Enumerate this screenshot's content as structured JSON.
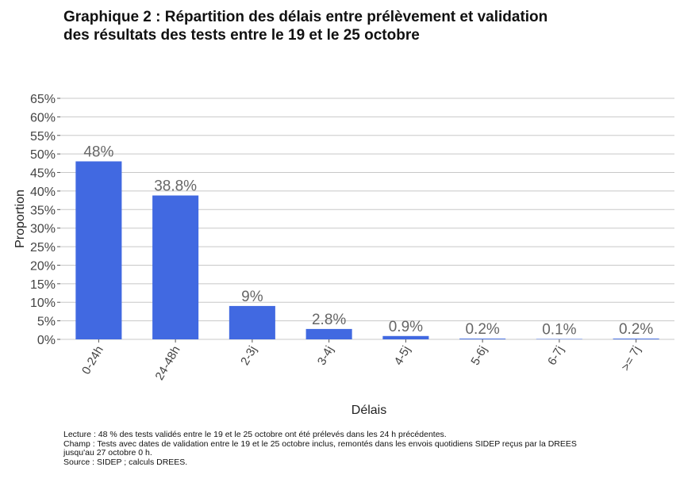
{
  "title_lines": [
    "Graphique 2 : Répartition des délais entre prélèvement et validation",
    "des résultats des tests entre le 19 et le 25 octobre"
  ],
  "chart_data": {
    "type": "bar",
    "title": "Graphique 2 : Répartition des délais entre prélèvement et validation des résultats des tests entre le 19 et le 25 octobre",
    "xlabel": "Délais",
    "ylabel": "Proportion",
    "categories": [
      "0-24h",
      "24-48h",
      "2-3j",
      "3-4j",
      "4-5j",
      "5-6j",
      "6-7j",
      ">= 7j"
    ],
    "values": [
      48,
      38.8,
      9,
      2.8,
      0.9,
      0.2,
      0.1,
      0.2
    ],
    "value_labels": [
      "48%",
      "38.8%",
      "9%",
      "2.8%",
      "0.9%",
      "0.2%",
      "0.1%",
      "0.2%"
    ],
    "ylim": [
      0,
      65
    ],
    "yticks": [
      0,
      5,
      10,
      15,
      20,
      25,
      30,
      35,
      40,
      45,
      50,
      55,
      60,
      65
    ],
    "ytick_labels": [
      "0%",
      "5%",
      "10%",
      "15%",
      "20%",
      "25%",
      "30%",
      "35%",
      "40%",
      "45%",
      "50%",
      "55%",
      "60%",
      "65%"
    ],
    "grid": true,
    "legend": "none",
    "colors": {
      "bar": "#4169e1",
      "grid": "#c8c8c8",
      "value_label": "#666666",
      "tick_label": "#444444"
    }
  },
  "footnotes": [
    "Lecture : 48 % des tests validés entre le 19 et le 25 octobre ont été prélevés dans les 24 h précédentes.",
    "Champ : Tests avec dates de validation entre le 19 et le 25 octobre inclus, remontés dans les envois quotidiens SIDEP reçus par la DREES",
    "jusqu'au 27 octobre 0 h.",
    "Source : SIDEP ; calculs DREES."
  ]
}
